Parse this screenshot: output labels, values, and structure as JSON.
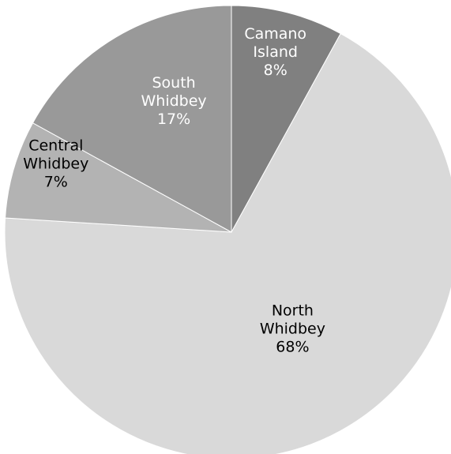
{
  "chart_data": {
    "type": "pie",
    "title": "",
    "slices": [
      {
        "name": "Camano Island",
        "label_lines": [
          "Camano",
          "Island",
          "8%"
        ],
        "value": 8,
        "color": "#808080",
        "text_color": "#ffffff"
      },
      {
        "name": "North Whidbey",
        "label_lines": [
          "North",
          "Whidbey",
          "68%"
        ],
        "value": 68,
        "color": "#d9d9d9",
        "text_color": "#000000"
      },
      {
        "name": "Central Whidbey",
        "label_lines": [
          "Central",
          "Whidbey",
          "7%"
        ],
        "value": 7,
        "color": "#b3b3b3",
        "text_color": "#000000"
      },
      {
        "name": "South Whidbey",
        "label_lines": [
          "South",
          "Whidbey",
          "17%"
        ],
        "value": 17,
        "color": "#999999",
        "text_color": "#ffffff"
      }
    ]
  }
}
